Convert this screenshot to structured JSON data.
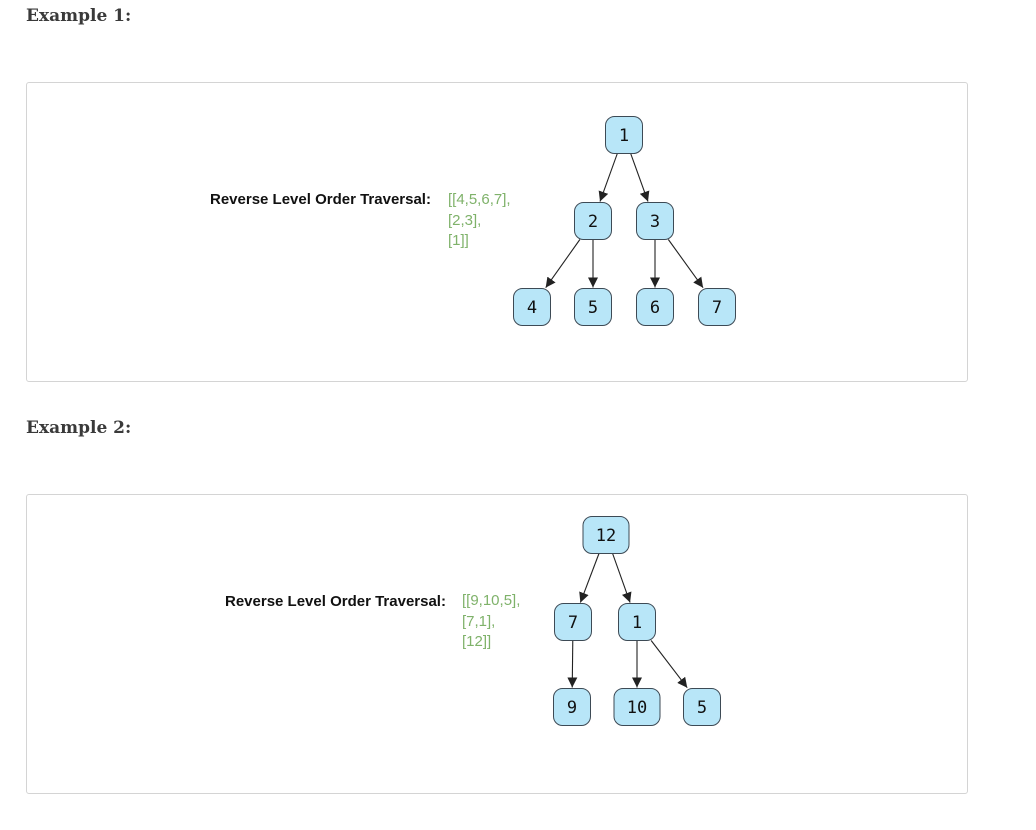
{
  "examples": [
    {
      "heading": "Example 1:",
      "label": "Reverse Level Order Traversal:",
      "lines": [
        "[[4,5,6,7],",
        "[2,3],",
        "[1]]"
      ],
      "colors": {
        "node_fill": "#b8e6f8",
        "traversal_text": "#7fb26a"
      },
      "tree": {
        "nodes": [
          {
            "id": "n1",
            "value": "1"
          },
          {
            "id": "n2",
            "value": "2"
          },
          {
            "id": "n3",
            "value": "3"
          },
          {
            "id": "n4",
            "value": "4"
          },
          {
            "id": "n5",
            "value": "5"
          },
          {
            "id": "n6",
            "value": "6"
          },
          {
            "id": "n7",
            "value": "7"
          }
        ],
        "edges": [
          [
            "n1",
            "n2"
          ],
          [
            "n1",
            "n3"
          ],
          [
            "n2",
            "n4"
          ],
          [
            "n2",
            "n5"
          ],
          [
            "n3",
            "n6"
          ],
          [
            "n3",
            "n7"
          ]
        ]
      }
    },
    {
      "heading": "Example 2:",
      "label": "Reverse Level Order Traversal:",
      "lines": [
        "[[9,10,5],",
        "[7,1],",
        "[12]]"
      ],
      "colors": {
        "node_fill": "#b8e6f8",
        "traversal_text": "#7fb26a"
      },
      "tree": {
        "nodes": [
          {
            "id": "m12",
            "value": "12"
          },
          {
            "id": "m7",
            "value": "7"
          },
          {
            "id": "m1",
            "value": "1"
          },
          {
            "id": "m9",
            "value": "9"
          },
          {
            "id": "m10",
            "value": "10"
          },
          {
            "id": "m5",
            "value": "5"
          }
        ],
        "edges": [
          [
            "m12",
            "m7"
          ],
          [
            "m12",
            "m1"
          ],
          [
            "m7",
            "m9"
          ],
          [
            "m1",
            "m10"
          ],
          [
            "m1",
            "m5"
          ]
        ]
      }
    }
  ]
}
